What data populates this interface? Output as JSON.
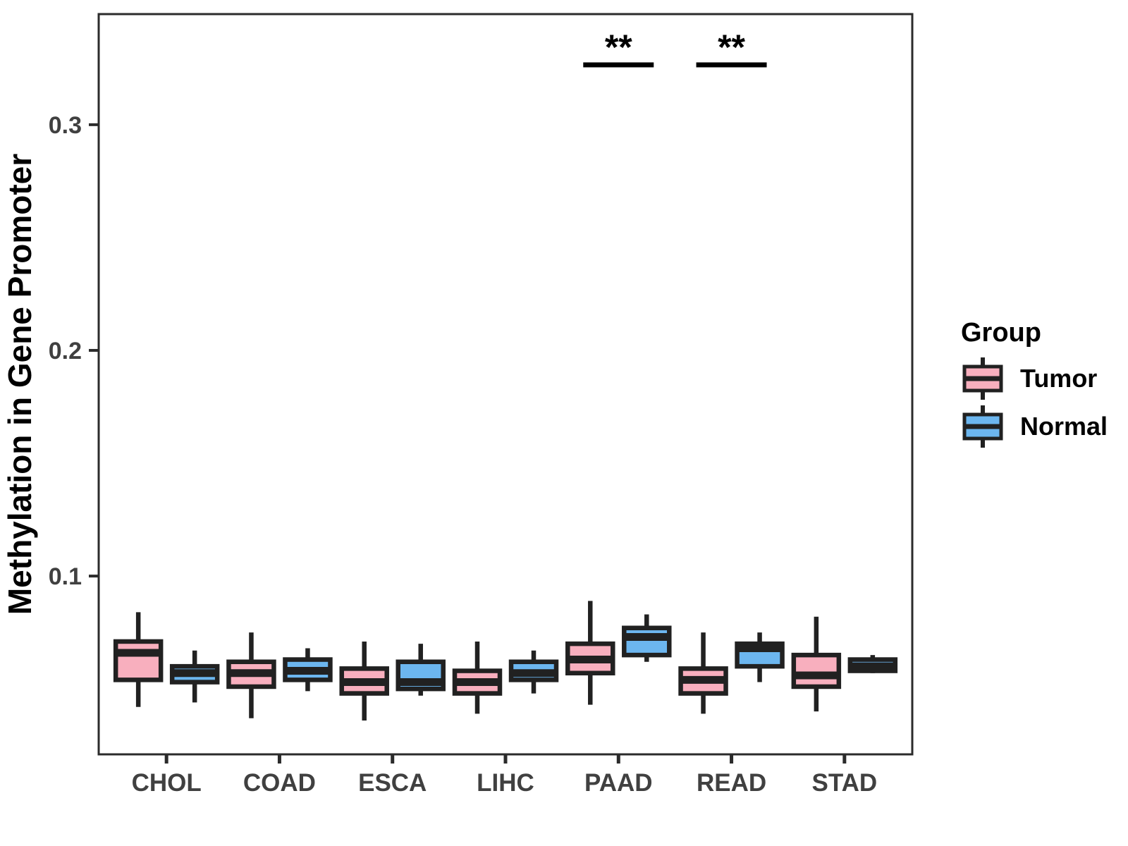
{
  "chart_data": {
    "type": "boxplot",
    "title": "",
    "xlabel": "",
    "ylabel": "Methylation in Gene Promoter",
    "categories": [
      "CHOL",
      "COAD",
      "ESCA",
      "LIHC",
      "PAAD",
      "READ",
      "STAD"
    ],
    "y_ticks": [
      "0.1",
      "0.2",
      "0.3"
    ],
    "y_tick_values": [
      0.1,
      0.2,
      0.3
    ],
    "ylim": [
      0.021,
      0.349
    ],
    "grid": false,
    "legend": {
      "title": "Group",
      "position": "right"
    },
    "colors": {
      "tumor_fill": "#F8AFBE",
      "normal_fill": "#6CB6EF",
      "box_stroke": "#212121",
      "axis_text": "#404040",
      "panel_border": "#2B2B2B",
      "annotation": "#000000"
    },
    "series": [
      {
        "name": "Tumor",
        "fill": "#F8AFBE",
        "boxes": [
          {
            "category": "CHOL",
            "whisker_low": 0.042,
            "q1": 0.054,
            "median": 0.066,
            "q3": 0.071,
            "whisker_high": 0.084
          },
          {
            "category": "COAD",
            "whisker_low": 0.037,
            "q1": 0.051,
            "median": 0.057,
            "q3": 0.062,
            "whisker_high": 0.075
          },
          {
            "category": "ESCA",
            "whisker_low": 0.036,
            "q1": 0.048,
            "median": 0.053,
            "q3": 0.059,
            "whisker_high": 0.071
          },
          {
            "category": "LIHC",
            "whisker_low": 0.039,
            "q1": 0.048,
            "median": 0.053,
            "q3": 0.058,
            "whisker_high": 0.071
          },
          {
            "category": "PAAD",
            "whisker_low": 0.043,
            "q1": 0.057,
            "median": 0.063,
            "q3": 0.07,
            "whisker_high": 0.089
          },
          {
            "category": "READ",
            "whisker_low": 0.039,
            "q1": 0.048,
            "median": 0.054,
            "q3": 0.059,
            "whisker_high": 0.075
          },
          {
            "category": "STAD",
            "whisker_low": 0.04,
            "q1": 0.051,
            "median": 0.056,
            "q3": 0.065,
            "whisker_high": 0.082
          }
        ]
      },
      {
        "name": "Normal",
        "fill": "#6CB6EF",
        "boxes": [
          {
            "category": "CHOL",
            "whisker_low": 0.044,
            "q1": 0.053,
            "median": 0.057,
            "q3": 0.06,
            "whisker_high": 0.067
          },
          {
            "category": "COAD",
            "whisker_low": 0.049,
            "q1": 0.054,
            "median": 0.058,
            "q3": 0.063,
            "whisker_high": 0.068
          },
          {
            "category": "ESCA",
            "whisker_low": 0.047,
            "q1": 0.05,
            "median": 0.053,
            "q3": 0.062,
            "whisker_high": 0.07
          },
          {
            "category": "LIHC",
            "whisker_low": 0.048,
            "q1": 0.054,
            "median": 0.057,
            "q3": 0.062,
            "whisker_high": 0.067
          },
          {
            "category": "PAAD",
            "whisker_low": 0.062,
            "q1": 0.065,
            "median": 0.073,
            "q3": 0.077,
            "whisker_high": 0.083
          },
          {
            "category": "READ",
            "whisker_low": 0.053,
            "q1": 0.06,
            "median": 0.068,
            "q3": 0.07,
            "whisker_high": 0.075
          },
          {
            "category": "STAD",
            "whisker_low": 0.057,
            "q1": 0.058,
            "median": 0.06,
            "q3": 0.063,
            "whisker_high": 0.065
          }
        ]
      }
    ],
    "significance": [
      {
        "category": "PAAD",
        "label": "**"
      },
      {
        "category": "READ",
        "label": "**"
      }
    ]
  }
}
